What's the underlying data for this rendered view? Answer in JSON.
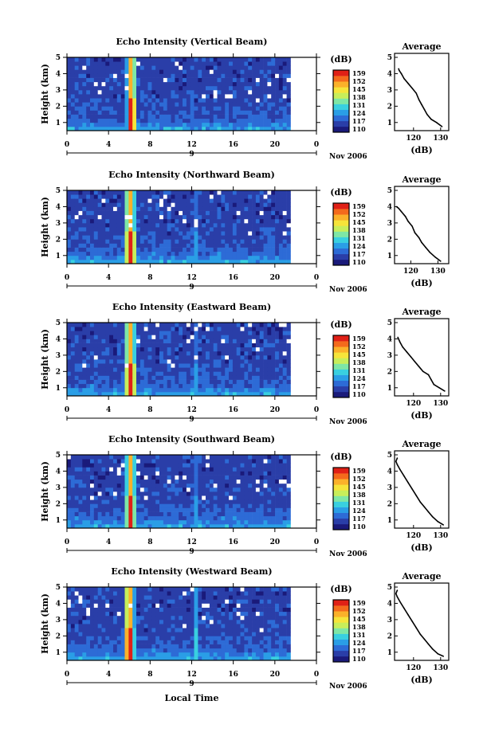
{
  "figure": {
    "xlabel": "Local Time",
    "date_label": "Nov 2006",
    "day_label": "9"
  },
  "colorbar": {
    "unit": "(dB)",
    "tick_labels": [
      "159",
      "152",
      "145",
      "138",
      "131",
      "124",
      "117",
      "110"
    ],
    "colors": [
      "#1a1a7a",
      "#2a3ea8",
      "#2d6bd6",
      "#2a9ee6",
      "#39d0e0",
      "#7ee7a6",
      "#c8ee5a",
      "#f6e43a",
      "#fbb12a",
      "#f46a1c",
      "#e02016"
    ]
  },
  "chart_data": [
    {
      "type": "heatmap",
      "title": "Echo Intensity (Vertical Beam)",
      "xlabel": "",
      "ylabel": "Height (km)",
      "xlim": [
        0,
        24
      ],
      "ylim": [
        0.5,
        5
      ],
      "x_ticks": [
        "0",
        "4",
        "8",
        "12",
        "16",
        "20",
        "0"
      ],
      "y_ticks": [
        "1",
        "2",
        "3",
        "4",
        "5"
      ],
      "x_tick_values": [
        0,
        4,
        8,
        12,
        16,
        20,
        24
      ],
      "data_end_hour": 21.5,
      "features": [
        {
          "center_hour": 6.2,
          "width_hours": 0.9,
          "peak_db": 159
        },
        {
          "center_hour": 12.2,
          "width_hours": 0.3,
          "peak_db": 138
        }
      ],
      "value_range_db": [
        110,
        159
      ]
    },
    {
      "type": "heatmap",
      "title": "Echo Intensity (Northward Beam)",
      "xlabel": "",
      "ylabel": "Height (km)",
      "xlim": [
        0,
        24
      ],
      "ylim": [
        0.5,
        5
      ],
      "x_ticks": [
        "0",
        "4",
        "8",
        "12",
        "16",
        "20",
        "0"
      ],
      "y_ticks": [
        "1",
        "2",
        "3",
        "4",
        "5"
      ],
      "x_tick_values": [
        0,
        4,
        8,
        12,
        16,
        20,
        24
      ],
      "data_end_hour": 21.5,
      "features": [
        {
          "center_hour": 6.1,
          "width_hours": 1.0,
          "peak_db": 159
        },
        {
          "center_hour": 12.3,
          "width_hours": 0.3,
          "peak_db": 140
        }
      ],
      "value_range_db": [
        110,
        159
      ]
    },
    {
      "type": "heatmap",
      "title": "Echo Intensity (Eastward Beam)",
      "xlabel": "",
      "ylabel": "Height (km)",
      "xlim": [
        0,
        24
      ],
      "ylim": [
        0.5,
        5
      ],
      "x_ticks": [
        "0",
        "4",
        "8",
        "12",
        "16",
        "20",
        "0"
      ],
      "y_ticks": [
        "1",
        "2",
        "3",
        "4",
        "5"
      ],
      "x_tick_values": [
        0,
        4,
        8,
        12,
        16,
        20,
        24
      ],
      "data_end_hour": 21.5,
      "features": [
        {
          "center_hour": 6.1,
          "width_hours": 1.0,
          "peak_db": 159
        },
        {
          "center_hour": 12.3,
          "width_hours": 0.3,
          "peak_db": 140
        }
      ],
      "value_range_db": [
        110,
        159
      ]
    },
    {
      "type": "heatmap",
      "title": "Echo Intensity (Southward Beam)",
      "xlabel": "",
      "ylabel": "Height (km)",
      "xlim": [
        0,
        24
      ],
      "ylim": [
        0.5,
        5
      ],
      "x_ticks": [
        "0",
        "4",
        "8",
        "12",
        "16",
        "20",
        "0"
      ],
      "y_ticks": [
        "1",
        "2",
        "3",
        "4",
        "5"
      ],
      "x_tick_values": [
        0,
        4,
        8,
        12,
        16,
        20,
        24
      ],
      "data_end_hour": 21.5,
      "features": [
        {
          "center_hour": 6.1,
          "width_hours": 0.9,
          "peak_db": 159
        },
        {
          "center_hour": 12.3,
          "width_hours": 0.3,
          "peak_db": 138
        }
      ],
      "value_range_db": [
        110,
        159
      ]
    },
    {
      "type": "heatmap",
      "title": "Echo Intensity (Westward Beam)",
      "xlabel": "",
      "ylabel": "Height (km)",
      "xlim": [
        0,
        24
      ],
      "ylim": [
        0.5,
        5
      ],
      "x_ticks": [
        "0",
        "4",
        "8",
        "12",
        "16",
        "20",
        "0"
      ],
      "y_ticks": [
        "1",
        "2",
        "3",
        "4",
        "5"
      ],
      "x_tick_values": [
        0,
        4,
        8,
        12,
        16,
        20,
        24
      ],
      "data_end_hour": 21.5,
      "features": [
        {
          "center_hour": 6.0,
          "width_hours": 1.0,
          "peak_db": 159
        },
        {
          "center_hour": 12.3,
          "width_hours": 0.3,
          "peak_db": 145
        }
      ],
      "value_range_db": [
        110,
        159
      ]
    },
    {
      "type": "line",
      "title": "Average",
      "xlabel": "(dB)",
      "ylabel": "",
      "xlim": [
        113,
        133
      ],
      "ylim": [
        0.5,
        5
      ],
      "x_ticks": [
        "120",
        "130"
      ],
      "y_ticks": [
        "1",
        "2",
        "3",
        "4",
        "5"
      ],
      "x": [
        130.5,
        128.5,
        126.5,
        125.0,
        124.0,
        123.0,
        122.0,
        121.0,
        119.5,
        118.0,
        116.5,
        115.5,
        114.7,
        114.5
      ],
      "y": [
        0.75,
        1.0,
        1.2,
        1.5,
        1.8,
        2.1,
        2.4,
        2.8,
        3.1,
        3.4,
        3.7,
        4.0,
        4.2,
        4.3
      ]
    },
    {
      "type": "line",
      "title": "Average",
      "xlabel": "(dB)",
      "ylabel": "",
      "xlim": [
        114,
        134
      ],
      "ylim": [
        0.5,
        5
      ],
      "x_ticks": [
        "120",
        "130"
      ],
      "y_ticks": [
        "1",
        "2",
        "3",
        "4",
        "5"
      ],
      "x": [
        131.0,
        129.0,
        127.0,
        125.5,
        124.0,
        123.0,
        121.5,
        120.5,
        119.0,
        118.0,
        116.5,
        115.5,
        114.7
      ],
      "y": [
        0.65,
        0.9,
        1.2,
        1.5,
        1.8,
        2.1,
        2.4,
        2.8,
        3.1,
        3.4,
        3.7,
        3.9,
        4.0
      ]
    },
    {
      "type": "line",
      "title": "Average",
      "xlabel": "(dB)",
      "ylabel": "",
      "xlim": [
        113,
        133
      ],
      "ylim": [
        0.5,
        5
      ],
      "x_ticks": [
        "120",
        "130"
      ],
      "y_ticks": [
        "1",
        "2",
        "3",
        "4",
        "5"
      ],
      "x": [
        131.5,
        129.5,
        127.5,
        126.5,
        125.5,
        123.5,
        122.0,
        120.5,
        119.0,
        117.5,
        116.0,
        115.0,
        114.2
      ],
      "y": [
        0.8,
        1.0,
        1.2,
        1.5,
        1.8,
        2.0,
        2.3,
        2.6,
        2.9,
        3.2,
        3.5,
        3.8,
        4.1
      ]
    },
    {
      "type": "line",
      "title": "Average",
      "xlabel": "(dB)",
      "ylabel": "",
      "xlim": [
        113,
        133
      ],
      "ylim": [
        0.5,
        5
      ],
      "x_ticks": [
        "120",
        "130"
      ],
      "y_ticks": [
        "1",
        "2",
        "3",
        "4",
        "5"
      ],
      "x": [
        131.0,
        129.0,
        127.0,
        125.5,
        124.0,
        122.5,
        121.0,
        119.5,
        118.0,
        116.5,
        115.0,
        114.0,
        113.5,
        114.0
      ],
      "y": [
        0.7,
        0.9,
        1.2,
        1.5,
        1.8,
        2.1,
        2.5,
        2.9,
        3.3,
        3.7,
        4.1,
        4.4,
        4.6,
        4.8
      ]
    },
    {
      "type": "line",
      "title": "Average",
      "xlabel": "(dB)",
      "ylabel": "",
      "xlim": [
        113,
        133
      ],
      "ylim": [
        0.5,
        5
      ],
      "x_ticks": [
        "120",
        "130"
      ],
      "y_ticks": [
        "1",
        "2",
        "3",
        "4",
        "5"
      ],
      "x": [
        131.0,
        129.0,
        127.0,
        125.5,
        124.0,
        122.5,
        121.0,
        119.5,
        118.0,
        116.5,
        115.0,
        114.0,
        113.5,
        114.0
      ],
      "y": [
        0.75,
        0.9,
        1.2,
        1.5,
        1.8,
        2.1,
        2.5,
        2.9,
        3.3,
        3.7,
        4.1,
        4.4,
        4.6,
        4.8
      ]
    }
  ]
}
